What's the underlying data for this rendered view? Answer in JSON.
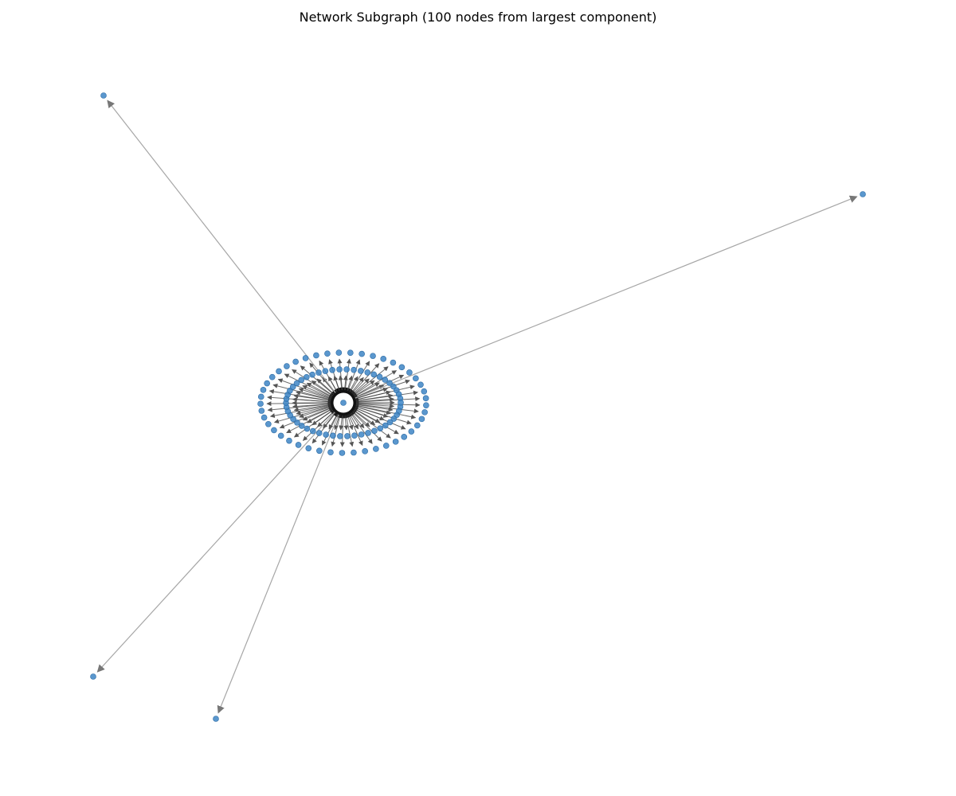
{
  "title": "Network Subgraph (100 nodes from largest component)",
  "graph": {
    "node_count": 100,
    "hub_count": 1,
    "inner_ring_count": 50,
    "outer_ring_count": 45,
    "far_count": 4,
    "directed": true,
    "colors": {
      "node": "#3d85c6",
      "node_edge": "#2b6aa3",
      "far_edge": "#a6a6a6",
      "near_edge": "#3a3a3a",
      "arrow": "#777777",
      "background": "#ffffff"
    }
  }
}
